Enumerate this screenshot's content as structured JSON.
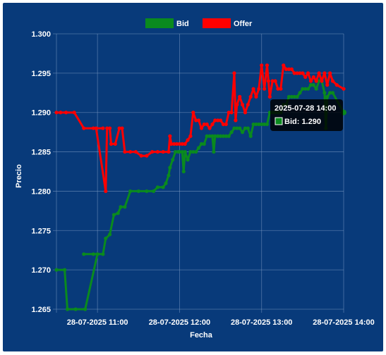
{
  "colors": {
    "background": "#083a7a",
    "grid": "#7f9cc4",
    "bid": "#0a8a1e",
    "offer": "#ff0000",
    "tooltip_bg": "#000000"
  },
  "chart_data": {
    "type": "line",
    "title": "",
    "xlabel": "Fecha",
    "ylabel": "Precio",
    "ylim": [
      1.265,
      1.3
    ],
    "y_ticks": [
      "1.265",
      "1.270",
      "1.275",
      "1.280",
      "1.285",
      "1.290",
      "1.295",
      "1.300"
    ],
    "x_range": [
      "2025-07-28 10:30",
      "2025-07-28 14:00"
    ],
    "x_ticks": [
      {
        "t": "2025-07-28 11:00",
        "label": "28-07-2025 11:00"
      },
      {
        "t": "2025-07-28 12:00",
        "label": "28-07-2025 12:00"
      },
      {
        "t": "2025-07-28 13:00",
        "label": "28-07-2025 13:00"
      },
      {
        "t": "2025-07-28 14:00",
        "label": "28-07-2025 14:00"
      }
    ],
    "grid": true,
    "legend_position": "top",
    "series": [
      {
        "name": "Bid",
        "color": "#0a8a1e",
        "points": [
          [
            "2025-07-28 10:30",
            1.27
          ],
          [
            "2025-07-28 10:36",
            1.27
          ],
          [
            "2025-07-28 10:38",
            1.265
          ],
          [
            "2025-07-28 10:44",
            1.265
          ],
          [
            "2025-07-28 10:51",
            1.265
          ],
          [
            "2025-07-28 11:00",
            1.272
          ],
          [
            "2025-07-28 10:50",
            1.272
          ],
          [
            "2025-07-28 10:57",
            1.272
          ],
          [
            "2025-07-28 11:04",
            1.272
          ],
          [
            "2025-07-28 11:06",
            1.274
          ],
          [
            "2025-07-28 11:09",
            1.2745
          ],
          [
            "2025-07-28 11:12",
            1.277
          ],
          [
            "2025-07-28 11:15",
            1.2772
          ],
          [
            "2025-07-28 11:17",
            1.278
          ],
          [
            "2025-07-28 11:20",
            1.278
          ],
          [
            "2025-07-28 11:24",
            1.28
          ],
          [
            "2025-07-28 11:30",
            1.28
          ],
          [
            "2025-07-28 11:36",
            1.28
          ],
          [
            "2025-07-28 11:41",
            1.28
          ],
          [
            "2025-07-28 11:44",
            1.2805
          ],
          [
            "2025-07-28 11:48",
            1.2805
          ],
          [
            "2025-07-28 11:50",
            1.281
          ],
          [
            "2025-07-28 11:52",
            1.282
          ],
          [
            "2025-07-28 11:53",
            1.283
          ],
          [
            "2025-07-28 11:55",
            1.284
          ],
          [
            "2025-07-28 11:57",
            1.285
          ],
          [
            "2025-07-28 11:59",
            1.285
          ],
          [
            "2025-07-28 12:00",
            1.285
          ],
          [
            "2025-07-28 12:02",
            1.285
          ],
          [
            "2025-07-28 12:03",
            1.2825
          ],
          [
            "2025-07-28 12:04",
            1.285
          ],
          [
            "2025-07-28 12:06",
            1.284
          ],
          [
            "2025-07-28 12:08",
            1.285
          ],
          [
            "2025-07-28 12:10",
            1.285
          ],
          [
            "2025-07-28 12:12",
            1.285
          ],
          [
            "2025-07-28 12:14",
            1.2855
          ],
          [
            "2025-07-28 12:16",
            1.286
          ],
          [
            "2025-07-28 12:18",
            1.286
          ],
          [
            "2025-07-28 12:20",
            1.287
          ],
          [
            "2025-07-28 12:22",
            1.287
          ],
          [
            "2025-07-28 12:24",
            1.287
          ],
          [
            "2025-07-28 12:25",
            1.285
          ],
          [
            "2025-07-28 12:26",
            1.287
          ],
          [
            "2025-07-28 12:28",
            1.287
          ],
          [
            "2025-07-28 12:30",
            1.287
          ],
          [
            "2025-07-28 12:32",
            1.287
          ],
          [
            "2025-07-28 12:34",
            1.287
          ],
          [
            "2025-07-28 12:36",
            1.287
          ],
          [
            "2025-07-28 12:38",
            1.2875
          ],
          [
            "2025-07-28 12:40",
            1.288
          ],
          [
            "2025-07-28 12:42",
            1.288
          ],
          [
            "2025-07-28 12:44",
            1.288
          ],
          [
            "2025-07-28 12:46",
            1.2875
          ],
          [
            "2025-07-28 12:48",
            1.288
          ],
          [
            "2025-07-28 12:50",
            1.288
          ],
          [
            "2025-07-28 12:52",
            1.287
          ],
          [
            "2025-07-28 12:54",
            1.2885
          ],
          [
            "2025-07-28 12:56",
            1.2885
          ],
          [
            "2025-07-28 12:58",
            1.2885
          ],
          [
            "2025-07-28 13:00",
            1.2885
          ],
          [
            "2025-07-28 13:02",
            1.2885
          ],
          [
            "2025-07-28 13:04",
            1.2885
          ],
          [
            "2025-07-28 13:06",
            1.29
          ],
          [
            "2025-07-28 13:08",
            1.29
          ],
          [
            "2025-07-28 13:10",
            1.29
          ],
          [
            "2025-07-28 13:12",
            1.29
          ],
          [
            "2025-07-28 13:14",
            1.29
          ],
          [
            "2025-07-28 13:16",
            1.291
          ],
          [
            "2025-07-28 13:18",
            1.291
          ],
          [
            "2025-07-28 13:20",
            1.292
          ],
          [
            "2025-07-28 13:22",
            1.292
          ],
          [
            "2025-07-28 13:24",
            1.292
          ],
          [
            "2025-07-28 13:26",
            1.292
          ],
          [
            "2025-07-28 13:28",
            1.2925
          ],
          [
            "2025-07-28 13:30",
            1.293
          ],
          [
            "2025-07-28 13:32",
            1.293
          ],
          [
            "2025-07-28 13:34",
            1.293
          ],
          [
            "2025-07-28 13:36",
            1.2935
          ],
          [
            "2025-07-28 13:38",
            1.2935
          ],
          [
            "2025-07-28 13:40",
            1.293
          ],
          [
            "2025-07-28 13:42",
            1.294
          ],
          [
            "2025-07-28 13:44",
            1.294
          ],
          [
            "2025-07-28 13:46",
            1.2925
          ],
          [
            "2025-07-28 13:47",
            1.288
          ],
          [
            "2025-07-28 13:48",
            1.292
          ],
          [
            "2025-07-28 13:50",
            1.2925
          ],
          [
            "2025-07-28 13:52",
            1.2925
          ],
          [
            "2025-07-28 14:00",
            1.29
          ]
        ]
      },
      {
        "name": "Offer",
        "color": "#ff0000",
        "points": [
          [
            "2025-07-28 10:30",
            1.29
          ],
          [
            "2025-07-28 10:33",
            1.29
          ],
          [
            "2025-07-28 10:37",
            1.29
          ],
          [
            "2025-07-28 10:43",
            1.29
          ],
          [
            "2025-07-28 10:50",
            1.288
          ],
          [
            "2025-07-28 10:57",
            1.288
          ],
          [
            "2025-07-28 11:04",
            1.288
          ],
          [
            "2025-07-28 10:59",
            1.288
          ],
          [
            "2025-07-28 11:06",
            1.28
          ],
          [
            "2025-07-28 11:07",
            1.288
          ],
          [
            "2025-07-28 11:09",
            1.288
          ],
          [
            "2025-07-28 11:10",
            1.286
          ],
          [
            "2025-07-28 11:13",
            1.286
          ],
          [
            "2025-07-28 11:16",
            1.288
          ],
          [
            "2025-07-28 11:18",
            1.288
          ],
          [
            "2025-07-28 11:20",
            1.285
          ],
          [
            "2025-07-28 11:24",
            1.285
          ],
          [
            "2025-07-28 11:28",
            1.285
          ],
          [
            "2025-07-28 11:32",
            1.2845
          ],
          [
            "2025-07-28 11:36",
            1.2845
          ],
          [
            "2025-07-28 11:40",
            1.285
          ],
          [
            "2025-07-28 11:44",
            1.285
          ],
          [
            "2025-07-28 11:48",
            1.285
          ],
          [
            "2025-07-28 11:52",
            1.285
          ],
          [
            "2025-07-28 11:53",
            1.287
          ],
          [
            "2025-07-28 11:54",
            1.286
          ],
          [
            "2025-07-28 11:56",
            1.286
          ],
          [
            "2025-07-28 11:58",
            1.286
          ],
          [
            "2025-07-28 12:00",
            1.286
          ],
          [
            "2025-07-28 12:02",
            1.286
          ],
          [
            "2025-07-28 12:04",
            1.286
          ],
          [
            "2025-07-28 12:06",
            1.2865
          ],
          [
            "2025-07-28 12:08",
            1.287
          ],
          [
            "2025-07-28 12:10",
            1.29
          ],
          [
            "2025-07-28 12:12",
            1.289
          ],
          [
            "2025-07-28 12:14",
            1.289
          ],
          [
            "2025-07-28 12:16",
            1.288
          ],
          [
            "2025-07-28 12:18",
            1.2885
          ],
          [
            "2025-07-28 12:20",
            1.2885
          ],
          [
            "2025-07-28 12:22",
            1.288
          ],
          [
            "2025-07-28 12:24",
            1.2885
          ],
          [
            "2025-07-28 12:26",
            1.289
          ],
          [
            "2025-07-28 12:28",
            1.289
          ],
          [
            "2025-07-28 12:30",
            1.289
          ],
          [
            "2025-07-28 12:32",
            1.2885
          ],
          [
            "2025-07-28 12:34",
            1.2885
          ],
          [
            "2025-07-28 12:36",
            1.29
          ],
          [
            "2025-07-28 12:38",
            1.29
          ],
          [
            "2025-07-28 12:40",
            1.295
          ],
          [
            "2025-07-28 12:41",
            1.289
          ],
          [
            "2025-07-28 12:42",
            1.291
          ],
          [
            "2025-07-28 12:44",
            1.292
          ],
          [
            "2025-07-28 12:46",
            1.291
          ],
          [
            "2025-07-28 12:48",
            1.29
          ],
          [
            "2025-07-28 12:50",
            1.291
          ],
          [
            "2025-07-28 12:52",
            1.292
          ],
          [
            "2025-07-28 12:54",
            1.293
          ],
          [
            "2025-07-28 12:56",
            1.292
          ],
          [
            "2025-07-28 12:58",
            1.293
          ],
          [
            "2025-07-28 13:00",
            1.296
          ],
          [
            "2025-07-28 13:02",
            1.293
          ],
          [
            "2025-07-28 13:04",
            1.296
          ],
          [
            "2025-07-28 13:05",
            1.294
          ],
          [
            "2025-07-28 13:06",
            1.292
          ],
          [
            "2025-07-28 13:08",
            1.294
          ],
          [
            "2025-07-28 13:10",
            1.294
          ],
          [
            "2025-07-28 13:12",
            1.293
          ],
          [
            "2025-07-28 13:14",
            1.293
          ],
          [
            "2025-07-28 13:16",
            1.296
          ],
          [
            "2025-07-28 13:18",
            1.2955
          ],
          [
            "2025-07-28 13:20",
            1.2955
          ],
          [
            "2025-07-28 13:22",
            1.2955
          ],
          [
            "2025-07-28 13:24",
            1.295
          ],
          [
            "2025-07-28 13:26",
            1.295
          ],
          [
            "2025-07-28 13:28",
            1.295
          ],
          [
            "2025-07-28 13:30",
            1.295
          ],
          [
            "2025-07-28 13:32",
            1.2945
          ],
          [
            "2025-07-28 13:34",
            1.295
          ],
          [
            "2025-07-28 13:36",
            1.294
          ],
          [
            "2025-07-28 13:38",
            1.2945
          ],
          [
            "2025-07-28 13:40",
            1.294
          ],
          [
            "2025-07-28 13:42",
            1.295
          ],
          [
            "2025-07-28 13:44",
            1.294
          ],
          [
            "2025-07-28 13:46",
            1.295
          ],
          [
            "2025-07-28 13:48",
            1.2935
          ],
          [
            "2025-07-28 13:50",
            1.295
          ],
          [
            "2025-07-28 13:52",
            1.294
          ],
          [
            "2025-07-28 13:55",
            1.2935
          ],
          [
            "2025-07-28 14:00",
            1.293
          ]
        ]
      }
    ],
    "tooltip": {
      "title": "2025-07-28 14:00",
      "series": "Bid",
      "value": "1.290",
      "label": "Bid: 1.290"
    }
  }
}
